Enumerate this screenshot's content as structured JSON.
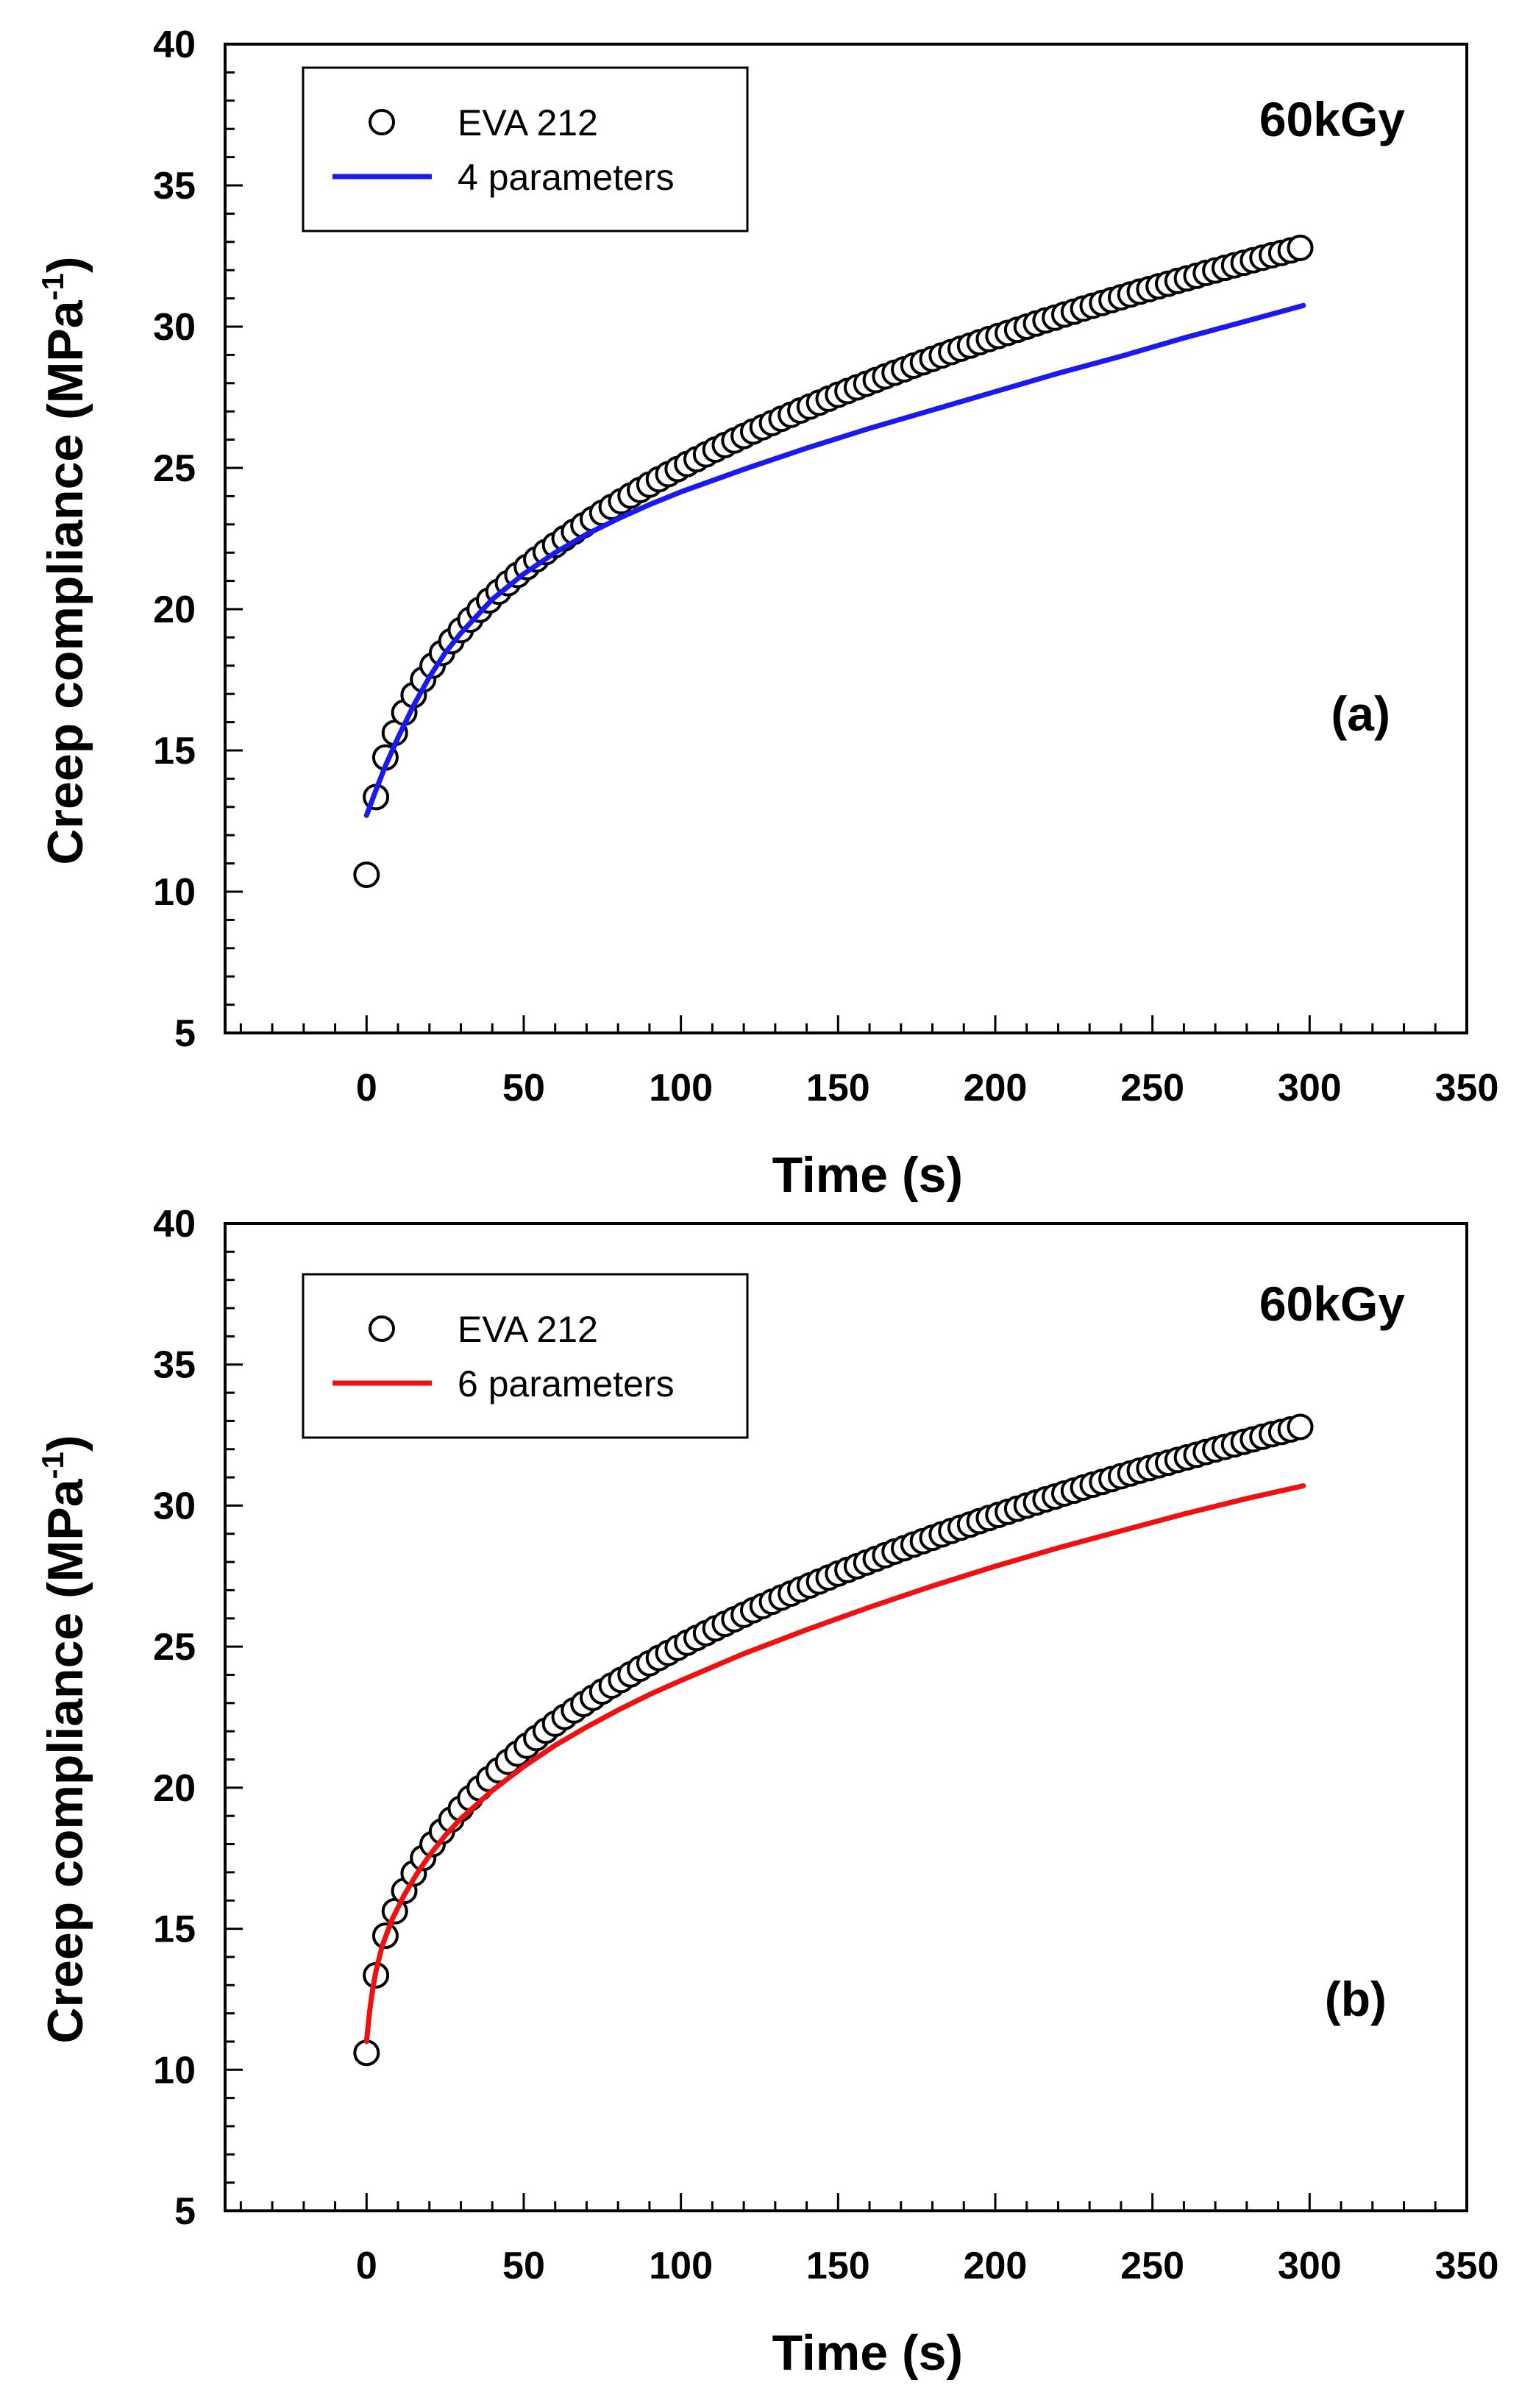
{
  "chart_data": [
    {
      "type": "scatter",
      "panel_label": "(a)",
      "annotation": "60kGy",
      "xlabel": "Time (s)",
      "ylabel": "Creep compliance (MPa",
      "ylabel_sup": "-1",
      "ylabel_close": ")",
      "xlim": [
        -45,
        350
      ],
      "ylim": [
        5,
        40
      ],
      "xticks": [
        0,
        50,
        100,
        150,
        200,
        250,
        300,
        350
      ],
      "yticks": [
        5,
        10,
        15,
        20,
        25,
        30,
        35,
        40
      ],
      "legend": {
        "placement": "top-left",
        "entries": [
          "EVA 212",
          "4 parameters"
        ]
      },
      "series": [
        {
          "name": "EVA 212",
          "kind": "markers",
          "x": [
            0,
            3,
            6,
            9,
            12,
            15,
            18,
            21,
            24,
            27,
            30,
            33,
            36,
            39,
            42,
            45,
            48,
            51,
            54,
            57,
            60,
            63,
            66,
            69,
            72,
            75,
            78,
            81,
            84,
            87,
            90,
            93,
            96,
            99,
            102,
            105,
            108,
            111,
            114,
            117,
            120,
            123,
            126,
            129,
            132,
            135,
            138,
            141,
            144,
            147,
            150,
            153,
            156,
            159,
            162,
            165,
            168,
            171,
            174,
            177,
            180,
            183,
            186,
            189,
            192,
            195,
            198,
            201,
            204,
            207,
            210,
            213,
            216,
            219,
            222,
            225,
            228,
            231,
            234,
            237,
            240,
            243,
            246,
            249,
            252,
            255,
            258,
            261,
            264,
            267,
            270,
            273,
            276,
            279,
            282,
            285,
            288,
            291,
            294,
            297
          ],
          "y": [
            10.6,
            13.35,
            14.75,
            15.62,
            16.34,
            16.96,
            17.51,
            18.0,
            18.45,
            18.87,
            19.26,
            19.63,
            19.98,
            20.31,
            20.62,
            20.92,
            21.21,
            21.49,
            21.76,
            22.02,
            22.27,
            22.51,
            22.74,
            22.97,
            23.19,
            23.41,
            23.62,
            23.82,
            24.02,
            24.22,
            24.41,
            24.6,
            24.78,
            24.96,
            25.14,
            25.31,
            25.48,
            25.65,
            25.81,
            25.97,
            26.13,
            26.29,
            26.44,
            26.59,
            26.74,
            26.88,
            27.03,
            27.17,
            27.31,
            27.45,
            27.59,
            27.72,
            27.85,
            27.98,
            28.11,
            28.24,
            28.37,
            28.49,
            28.62,
            28.74,
            28.86,
            28.98,
            29.1,
            29.22,
            29.33,
            29.45,
            29.56,
            29.67,
            29.78,
            29.89,
            30.0,
            30.11,
            30.22,
            30.32,
            30.43,
            30.53,
            30.64,
            30.74,
            30.84,
            30.94,
            31.04,
            31.14,
            31.24,
            31.33,
            31.43,
            31.52,
            31.62,
            31.71,
            31.8,
            31.9,
            31.99,
            32.08,
            32.17,
            32.26,
            32.35,
            32.44,
            32.53,
            32.61,
            32.7,
            32.79
          ]
        },
        {
          "name": "4 parameters",
          "kind": "line",
          "color": "#1a1aee",
          "x": [
            0,
            3,
            6,
            10,
            15,
            20,
            25,
            30,
            40,
            50,
            60,
            70,
            80,
            90,
            100,
            120,
            140,
            160,
            180,
            200,
            220,
            240,
            260,
            280,
            298
          ],
          "y": [
            12.7,
            13.6,
            14.45,
            15.45,
            16.6,
            17.6,
            18.45,
            19.15,
            20.35,
            21.25,
            22.0,
            22.65,
            23.2,
            23.7,
            24.15,
            24.95,
            25.7,
            26.4,
            27.05,
            27.7,
            28.35,
            28.95,
            29.6,
            30.2,
            30.75
          ]
        }
      ]
    },
    {
      "type": "scatter",
      "panel_label": "(b)",
      "annotation": "60kGy",
      "xlabel": "Time (s)",
      "ylabel": "Creep compliance (MPa",
      "ylabel_sup": "-1",
      "ylabel_close": ")",
      "xlim": [
        -45,
        350
      ],
      "ylim": [
        5,
        40
      ],
      "xticks": [
        0,
        50,
        100,
        150,
        200,
        250,
        300,
        350
      ],
      "yticks": [
        5,
        10,
        15,
        20,
        25,
        30,
        35,
        40
      ],
      "legend": {
        "placement": "top-left",
        "entries": [
          "EVA 212",
          "6 parameters"
        ]
      },
      "series": [
        {
          "name": "EVA 212",
          "kind": "markers",
          "x": [
            0,
            3,
            6,
            9,
            12,
            15,
            18,
            21,
            24,
            27,
            30,
            33,
            36,
            39,
            42,
            45,
            48,
            51,
            54,
            57,
            60,
            63,
            66,
            69,
            72,
            75,
            78,
            81,
            84,
            87,
            90,
            93,
            96,
            99,
            102,
            105,
            108,
            111,
            114,
            117,
            120,
            123,
            126,
            129,
            132,
            135,
            138,
            141,
            144,
            147,
            150,
            153,
            156,
            159,
            162,
            165,
            168,
            171,
            174,
            177,
            180,
            183,
            186,
            189,
            192,
            195,
            198,
            201,
            204,
            207,
            210,
            213,
            216,
            219,
            222,
            225,
            228,
            231,
            234,
            237,
            240,
            243,
            246,
            249,
            252,
            255,
            258,
            261,
            264,
            267,
            270,
            273,
            276,
            279,
            282,
            285,
            288,
            291,
            294,
            297
          ],
          "y": [
            10.6,
            13.35,
            14.75,
            15.62,
            16.34,
            16.96,
            17.51,
            18.0,
            18.45,
            18.87,
            19.26,
            19.63,
            19.98,
            20.31,
            20.62,
            20.92,
            21.21,
            21.49,
            21.76,
            22.02,
            22.27,
            22.51,
            22.74,
            22.97,
            23.19,
            23.41,
            23.62,
            23.82,
            24.02,
            24.22,
            24.41,
            24.6,
            24.78,
            24.96,
            25.14,
            25.31,
            25.48,
            25.65,
            25.81,
            25.97,
            26.13,
            26.29,
            26.44,
            26.59,
            26.74,
            26.88,
            27.03,
            27.17,
            27.31,
            27.45,
            27.59,
            27.72,
            27.85,
            27.98,
            28.11,
            28.24,
            28.37,
            28.49,
            28.62,
            28.74,
            28.86,
            28.98,
            29.1,
            29.22,
            29.33,
            29.45,
            29.56,
            29.67,
            29.78,
            29.89,
            30.0,
            30.11,
            30.22,
            30.32,
            30.43,
            30.53,
            30.64,
            30.74,
            30.84,
            30.94,
            31.04,
            31.14,
            31.24,
            31.33,
            31.43,
            31.52,
            31.62,
            31.71,
            31.8,
            31.9,
            31.99,
            32.08,
            32.17,
            32.26,
            32.35,
            32.44,
            32.53,
            32.61,
            32.7,
            32.79
          ]
        },
        {
          "name": "6 parameters",
          "kind": "line",
          "color": "#ee1111",
          "x": [
            0,
            1,
            2,
            3,
            5,
            8,
            12,
            16,
            20,
            25,
            30,
            40,
            50,
            60,
            70,
            80,
            90,
            100,
            120,
            140,
            160,
            180,
            200,
            220,
            240,
            260,
            280,
            298
          ],
          "y": [
            11.0,
            12.1,
            12.9,
            13.5,
            14.4,
            15.3,
            16.2,
            16.95,
            17.6,
            18.3,
            18.9,
            19.9,
            20.75,
            21.5,
            22.15,
            22.75,
            23.3,
            23.8,
            24.75,
            25.6,
            26.4,
            27.15,
            27.85,
            28.5,
            29.1,
            29.7,
            30.25,
            30.7
          ]
        }
      ]
    }
  ]
}
